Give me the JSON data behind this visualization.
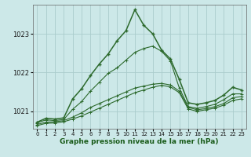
{
  "background_color": "#cce8e8",
  "grid_color": "#aacccc",
  "xlabel": "Graphe pression niveau de la mer (hPa)",
  "yticks": [
    1021,
    1022,
    1023
  ],
  "ylim": [
    1020.55,
    1023.75
  ],
  "xlim": [
    -0.5,
    23.5
  ],
  "xticks": [
    0,
    1,
    2,
    3,
    4,
    5,
    6,
    7,
    8,
    9,
    10,
    11,
    12,
    13,
    14,
    15,
    16,
    17,
    18,
    19,
    20,
    21,
    22,
    23
  ],
  "series": [
    {
      "color": "#2d6a2d",
      "lw": 1.1,
      "x": [
        0,
        1,
        2,
        3,
        4,
        5,
        6,
        7,
        8,
        9,
        10,
        11,
        12,
        13,
        14,
        15,
        16,
        17,
        18,
        19,
        20,
        21,
        22,
        23
      ],
      "y": [
        1020.72,
        1020.82,
        1020.8,
        1020.83,
        1021.32,
        1021.58,
        1021.92,
        1022.22,
        1022.48,
        1022.82,
        1023.08,
        1023.62,
        1023.22,
        1023.0,
        1022.58,
        1022.35,
        1021.82,
        1021.22,
        1021.18,
        1021.22,
        1021.28,
        1021.42,
        1021.62,
        1021.55
      ]
    },
    {
      "color": "#2d6a2d",
      "lw": 0.8,
      "x": [
        0,
        1,
        2,
        3,
        4,
        5,
        6,
        7,
        8,
        9,
        10,
        11,
        12,
        13,
        14,
        15,
        16,
        17,
        18,
        19,
        20,
        21,
        22,
        23
      ],
      "y": [
        1020.7,
        1020.78,
        1020.76,
        1020.79,
        1021.05,
        1021.25,
        1021.52,
        1021.75,
        1021.98,
        1022.12,
        1022.32,
        1022.52,
        1022.62,
        1022.68,
        1022.55,
        1022.3,
        1021.6,
        1021.12,
        1021.08,
        1021.12,
        1021.18,
        1021.3,
        1021.45,
        1021.45
      ]
    },
    {
      "color": "#2d6a2d",
      "lw": 0.8,
      "x": [
        0,
        1,
        2,
        3,
        4,
        5,
        6,
        7,
        8,
        9,
        10,
        11,
        12,
        13,
        14,
        15,
        16,
        17,
        18,
        19,
        20,
        21,
        22,
        23
      ],
      "y": [
        1020.66,
        1020.72,
        1020.73,
        1020.76,
        1020.85,
        1020.96,
        1021.1,
        1021.2,
        1021.3,
        1021.4,
        1021.5,
        1021.6,
        1021.65,
        1021.7,
        1021.72,
        1021.68,
        1021.52,
        1021.1,
        1021.04,
        1021.07,
        1021.12,
        1021.2,
        1021.35,
        1021.38
      ]
    },
    {
      "color": "#2d6a2d",
      "lw": 0.8,
      "x": [
        0,
        1,
        2,
        3,
        4,
        5,
        6,
        7,
        8,
        9,
        10,
        11,
        12,
        13,
        14,
        15,
        16,
        17,
        18,
        19,
        20,
        21,
        22,
        23
      ],
      "y": [
        1020.63,
        1020.69,
        1020.7,
        1020.73,
        1020.8,
        1020.88,
        1020.98,
        1021.08,
        1021.18,
        1021.28,
        1021.38,
        1021.48,
        1021.55,
        1021.62,
        1021.67,
        1021.63,
        1021.48,
        1021.06,
        1021.0,
        1021.04,
        1021.08,
        1021.16,
        1021.28,
        1021.32
      ]
    }
  ]
}
